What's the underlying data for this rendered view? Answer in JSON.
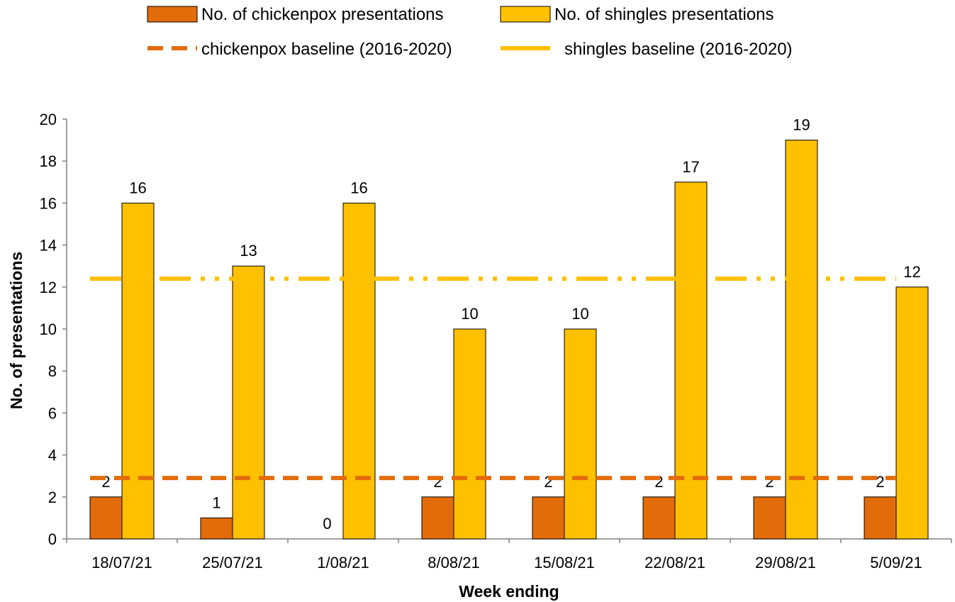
{
  "chart_data": {
    "type": "bar",
    "title": "",
    "xlabel": "Week ending",
    "ylabel": "No. of presentations",
    "categories": [
      "18/07/21",
      "25/07/21",
      "1/08/21",
      "8/08/21",
      "15/08/21",
      "22/08/21",
      "29/08/21",
      "5/09/21"
    ],
    "series": [
      {
        "name": "No. of chickenpox presentations",
        "values": [
          2,
          1,
          0,
          2,
          2,
          2,
          2,
          2
        ],
        "color": "#E36C0A"
      },
      {
        "name": "No. of shingles presentations",
        "values": [
          16,
          13,
          16,
          10,
          10,
          17,
          19,
          12
        ],
        "color": "#FFC000"
      }
    ],
    "baselines": [
      {
        "name": "chickenpox baseline (2016-2020)",
        "value": 2.9,
        "color": "#E36C0A",
        "style": "dashed"
      },
      {
        "name": "shingles baseline (2016-2020)",
        "value": 12.4,
        "color": "#FFC000",
        "style": "long-dash-dot"
      }
    ],
    "ylim": [
      0,
      20
    ],
    "yticks": [
      0,
      2,
      4,
      6,
      8,
      10,
      12,
      14,
      16,
      18,
      20
    ],
    "grid": false,
    "legend_position": "top"
  }
}
